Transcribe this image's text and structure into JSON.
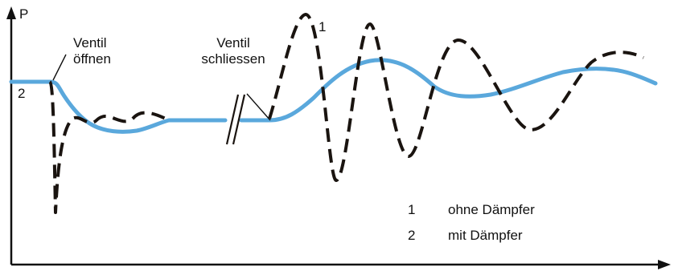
{
  "labels": {
    "y_axis": "P",
    "valve_open": "Ventil\nöffnen",
    "valve_close": "Ventil\nschliessen",
    "curve1_marker": "1",
    "curve2_marker": "2"
  },
  "legend": [
    {
      "num": "1",
      "text": "ohne Dämpfer"
    },
    {
      "num": "2",
      "text": "mit Dämpfer"
    }
  ],
  "colors": {
    "damped_curve": "#5aa8dc",
    "undamped_curve": "#1a1410",
    "axes": "#111111"
  }
}
